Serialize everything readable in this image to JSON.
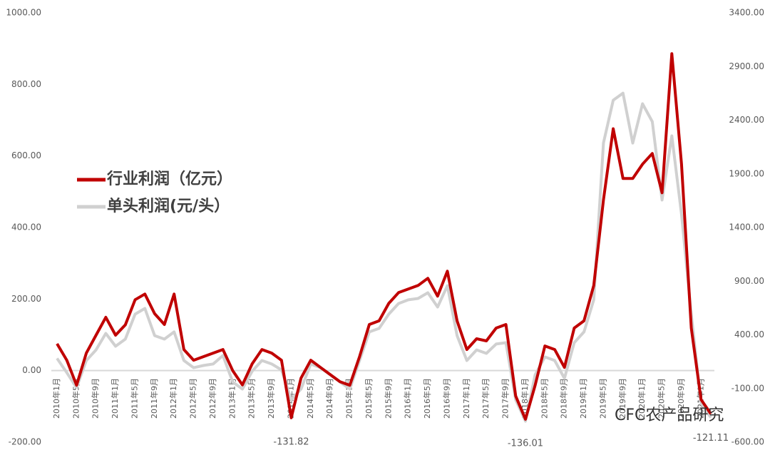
{
  "chart_data": {
    "type": "line",
    "categories": [
      "2010年1月",
      null,
      "2010年5月",
      null,
      "2010年9月",
      null,
      "2011年1月",
      null,
      "2011年5月",
      null,
      "2011年9月",
      null,
      "2012年1月",
      null,
      "2012年5月",
      null,
      "2012年9月",
      null,
      "2013年1月",
      null,
      "2013年5月",
      null,
      "2013年9月",
      null,
      "2014年1月",
      null,
      "2014年5月",
      null,
      "2014年9月",
      null,
      "2015年1月",
      null,
      "2015年5月",
      null,
      "2015年9月",
      null,
      "2016年1月",
      null,
      "2016年5月",
      null,
      "2016年9月",
      null,
      "2017年1月",
      null,
      "2017年5月",
      null,
      "2017年9月",
      null,
      "2018年1月",
      null,
      "2018年5月",
      null,
      "2018年9月",
      null,
      "2019年1月",
      null,
      "2019年5月",
      null,
      "2019年9月",
      null,
      "2020年1月",
      null,
      "2020年5月",
      null,
      "2020年9月",
      null,
      "2021年1月",
      null
    ],
    "series": [
      {
        "name": "单头利润(元/头）",
        "color": "#d0d0d0",
        "axis": "y2",
        "values": [
          181,
          48,
          -92,
          161,
          260,
          413,
          294,
          360,
          593,
          646,
          393,
          360,
          427,
          161,
          94,
          114,
          128,
          207,
          -39,
          -105,
          61,
          161,
          128,
          74,
          -205,
          -105,
          128,
          94,
          28,
          -39,
          -105,
          161,
          427,
          460,
          593,
          692,
          726,
          739,
          792,
          659,
          858,
          393,
          161,
          260,
          227,
          314,
          327,
          -205,
          -404,
          28,
          194,
          161,
          -5,
          327,
          427,
          726,
          2187,
          2586,
          2652,
          2187,
          2553,
          2387,
          1656,
          2254,
          1523,
          593,
          -238,
          -371
        ]
      },
      {
        "name": "行业利润（亿元）",
        "color": "#c00000",
        "values": [
          75,
          29,
          -41,
          49,
          99,
          149,
          99,
          128,
          198,
          214,
          159,
          129,
          214,
          59,
          29,
          39,
          49,
          59,
          0,
          -40,
          19,
          59,
          49,
          29,
          -131.82,
          -21,
          29,
          9,
          -11,
          -31,
          -41,
          39,
          129,
          139,
          188,
          218,
          228,
          238,
          258,
          208,
          278,
          139,
          59,
          89,
          83,
          119,
          129,
          -71,
          -136.01,
          -41,
          69,
          59,
          9,
          119,
          139,
          238,
          477,
          676,
          537,
          537,
          577,
          607,
          497,
          886,
          577,
          119,
          -81,
          -121.11
        ],
        "value_labels": [
          null,
          null,
          null,
          null,
          null,
          null,
          null,
          null,
          null,
          null,
          null,
          null,
          null,
          null,
          null,
          null,
          null,
          null,
          null,
          null,
          null,
          null,
          null,
          null,
          "-131.82",
          null,
          null,
          null,
          null,
          null,
          null,
          null,
          null,
          null,
          null,
          null,
          null,
          null,
          null,
          null,
          null,
          null,
          null,
          null,
          null,
          null,
          null,
          null,
          "-136.01",
          null,
          null,
          null,
          null,
          null,
          null,
          null,
          null,
          null,
          null,
          null,
          null,
          null,
          null,
          null,
          null,
          null,
          null,
          "-121.11"
        ]
      }
    ],
    "ylim": [
      -200,
      1000
    ],
    "yticks": [
      {
        "value": -200,
        "label": "-200.00"
      },
      {
        "value": 0,
        "label": "0.00"
      },
      {
        "value": 200,
        "label": "200.00"
      },
      {
        "value": 400,
        "label": "400.00"
      },
      {
        "value": 600,
        "label": "600.00"
      },
      {
        "value": 800,
        "label": "800.00"
      },
      {
        "value": 1000,
        "label": "1000.00"
      }
    ],
    "y2lim": [
      -600,
      3400
    ],
    "y2ticks": [
      {
        "value": -600,
        "label": "-600.00"
      },
      {
        "value": -100,
        "label": "-100.00"
      },
      {
        "value": 400,
        "label": "400.00"
      },
      {
        "value": 900,
        "label": "900.00"
      },
      {
        "value": 1400,
        "label": "1400.00"
      },
      {
        "value": 1900,
        "label": "1900.00"
      },
      {
        "value": 2400,
        "label": "2400.00"
      },
      {
        "value": 2900,
        "label": "2900.00"
      },
      {
        "value": 3400,
        "label": "3400.00"
      }
    ],
    "grid": false,
    "legend": "upper-left",
    "watermark": "CFC农产品研究"
  }
}
